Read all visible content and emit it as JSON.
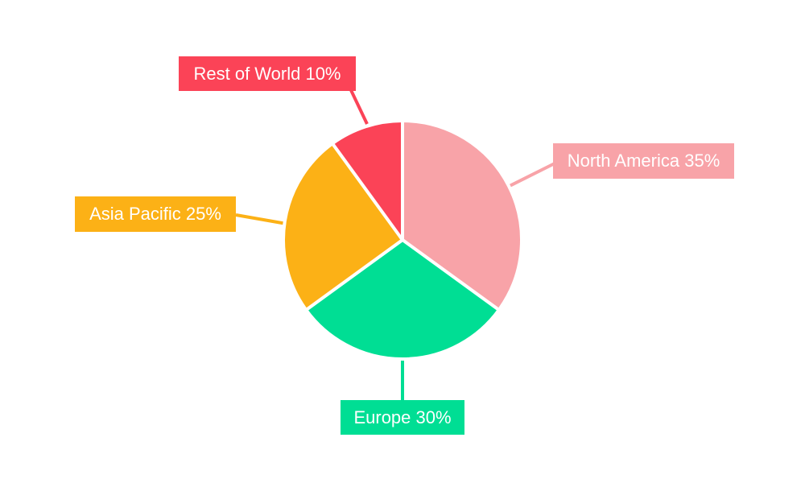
{
  "page": {
    "background_color": "#ffffff"
  },
  "chart_data": {
    "type": "pie",
    "title": "",
    "categories": [
      "North America",
      "Europe",
      "Asia Pacific",
      "Rest of World"
    ],
    "values": [
      35,
      30,
      25,
      10
    ],
    "unit": "%",
    "start_angle_deg_from_top": 0,
    "direction": "clockwise",
    "legend_position": "none",
    "slice_border_color": "#ffffff",
    "label_text_color": "#ffffff",
    "slices": [
      {
        "label": "North America",
        "value": 35,
        "display": "North America 35%",
        "color": "#F8A3A8"
      },
      {
        "label": "Europe",
        "value": 30,
        "display": "Europe 30%",
        "color": "#00DE94"
      },
      {
        "label": "Asia Pacific",
        "value": 25,
        "display": "Asia Pacific 25%",
        "color": "#FCB116"
      },
      {
        "label": "Rest of World",
        "value": 10,
        "display": "Rest of World 10%",
        "color": "#FB4357"
      }
    ]
  }
}
